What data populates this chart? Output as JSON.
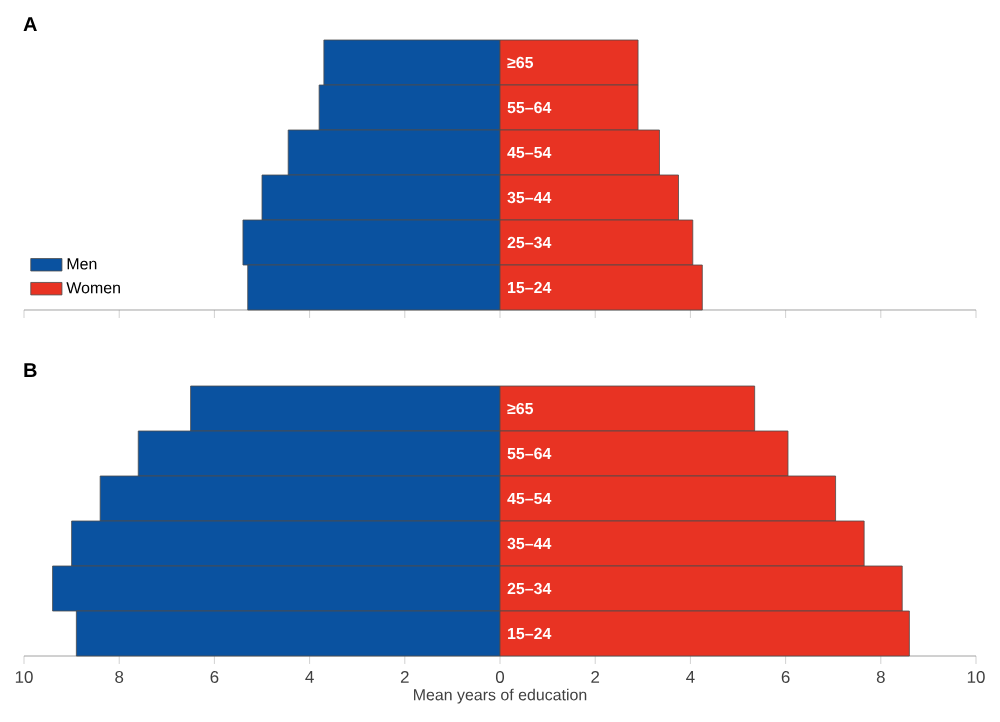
{
  "chart_data": [
    {
      "type": "bar",
      "orientation": "horizontal",
      "title": "A",
      "categories": [
        "≥65",
        "55–64",
        "45–54",
        "35–44",
        "25–34",
        "15–24"
      ],
      "series": [
        {
          "name": "Men",
          "color": "#0a52a0",
          "values": [
            -3.7,
            -3.8,
            -4.45,
            -5.0,
            -5.4,
            -5.3
          ]
        },
        {
          "name": "Women",
          "color": "#e83323",
          "values": [
            2.9,
            2.9,
            3.35,
            3.75,
            4.05,
            4.25
          ]
        }
      ],
      "xlim": [
        -10,
        10
      ],
      "xticks": [
        {
          "value": -10,
          "label": null
        },
        {
          "value": -8,
          "label": null
        },
        {
          "value": -6,
          "label": null
        },
        {
          "value": -4,
          "label": null
        },
        {
          "value": -2,
          "label": null
        },
        {
          "value": 0,
          "label": null
        },
        {
          "value": 2,
          "label": null
        },
        {
          "value": 4,
          "label": null
        },
        {
          "value": 6,
          "label": null
        },
        {
          "value": 8,
          "label": null
        },
        {
          "value": 10,
          "label": null
        }
      ],
      "legend": "bottom left",
      "tick_labels": "y",
      "stacked": true
    },
    {
      "type": "bar",
      "orientation": "horizontal",
      "title": "B",
      "xlabel": "Mean years of education",
      "categories": [
        "≥65",
        "55–64",
        "45–54",
        "35–44",
        "25–34",
        "15–24"
      ],
      "series": [
        {
          "color": "#0a52a0",
          "values": [
            -6.5,
            -7.6,
            -8.4,
            -9.0,
            -9.4,
            -8.9
          ]
        },
        {
          "color": "#e83323",
          "values": [
            5.35,
            6.05,
            7.05,
            7.65,
            8.45,
            8.6
          ]
        }
      ],
      "xlim": [
        -10,
        10
      ],
      "xticks": [
        {
          "value": -10,
          "label": "10"
        },
        {
          "value": -8,
          "label": "8"
        },
        {
          "value": -6,
          "label": "6"
        },
        {
          "value": -4,
          "label": "4"
        },
        {
          "value": -2,
          "label": "2"
        },
        0,
        2,
        4,
        6,
        8,
        10
      ],
      "stacked": true
    }
  ]
}
